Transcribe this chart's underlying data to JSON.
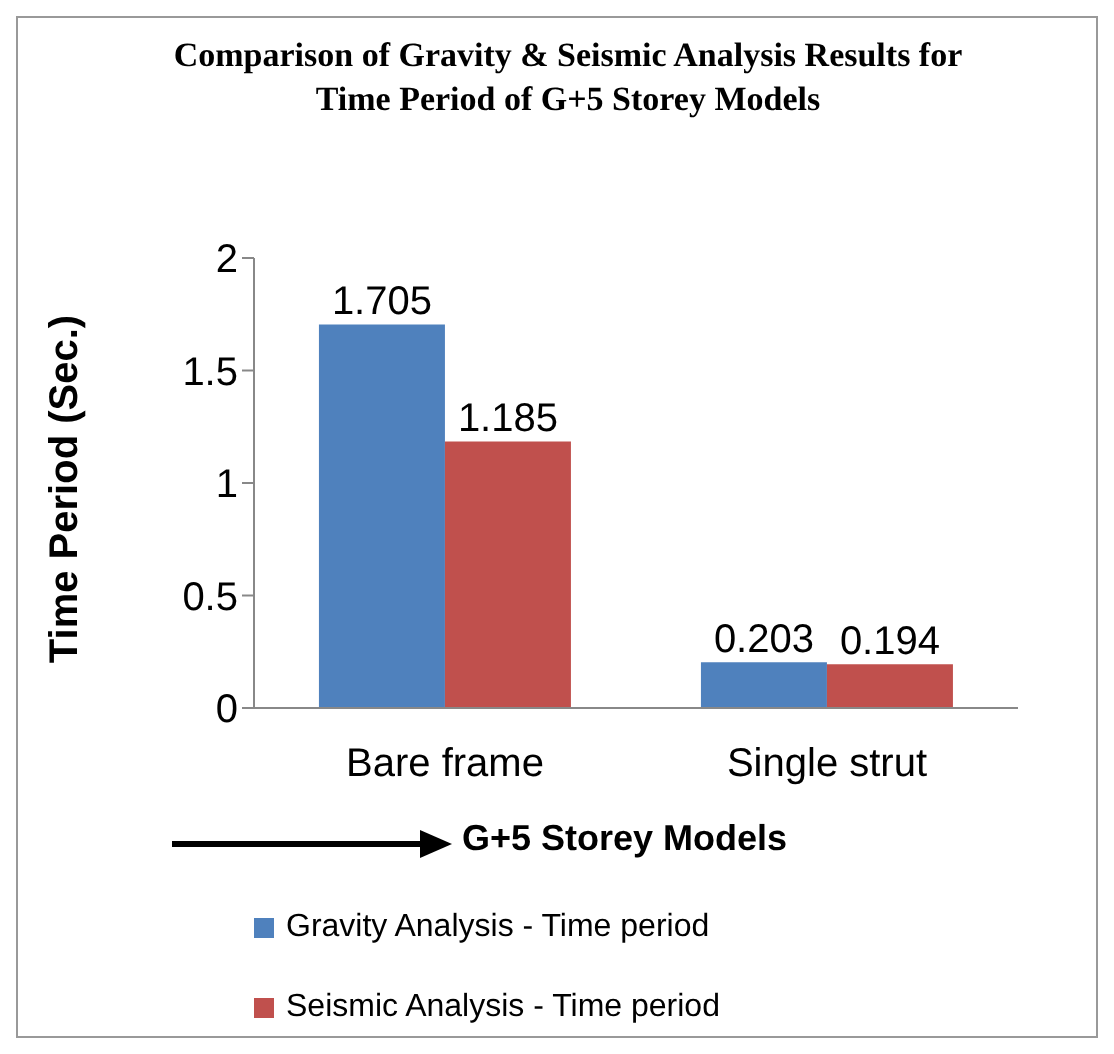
{
  "chart_data": {
    "type": "bar",
    "title": "Comparison of Gravity & Seismic Analysis Results for Time Period of G+5 Storey Models",
    "xlabel": "G+5 Storey Models",
    "ylabel": "Time Period (Sec.)",
    "categories": [
      "Bare frame",
      "Single strut"
    ],
    "series": [
      {
        "name": "Gravity Analysis - Time period",
        "color": "#4f81bd",
        "values": [
          1.705,
          0.203
        ]
      },
      {
        "name": "Seismic Analysis - Time period",
        "color": "#c0504d",
        "values": [
          1.185,
          0.194
        ]
      }
    ],
    "ylim": [
      0,
      2
    ],
    "yticks": [
      0,
      0.5,
      1,
      1.5,
      2
    ],
    "grid": false,
    "legend": "bottom",
    "data_labels": true
  }
}
